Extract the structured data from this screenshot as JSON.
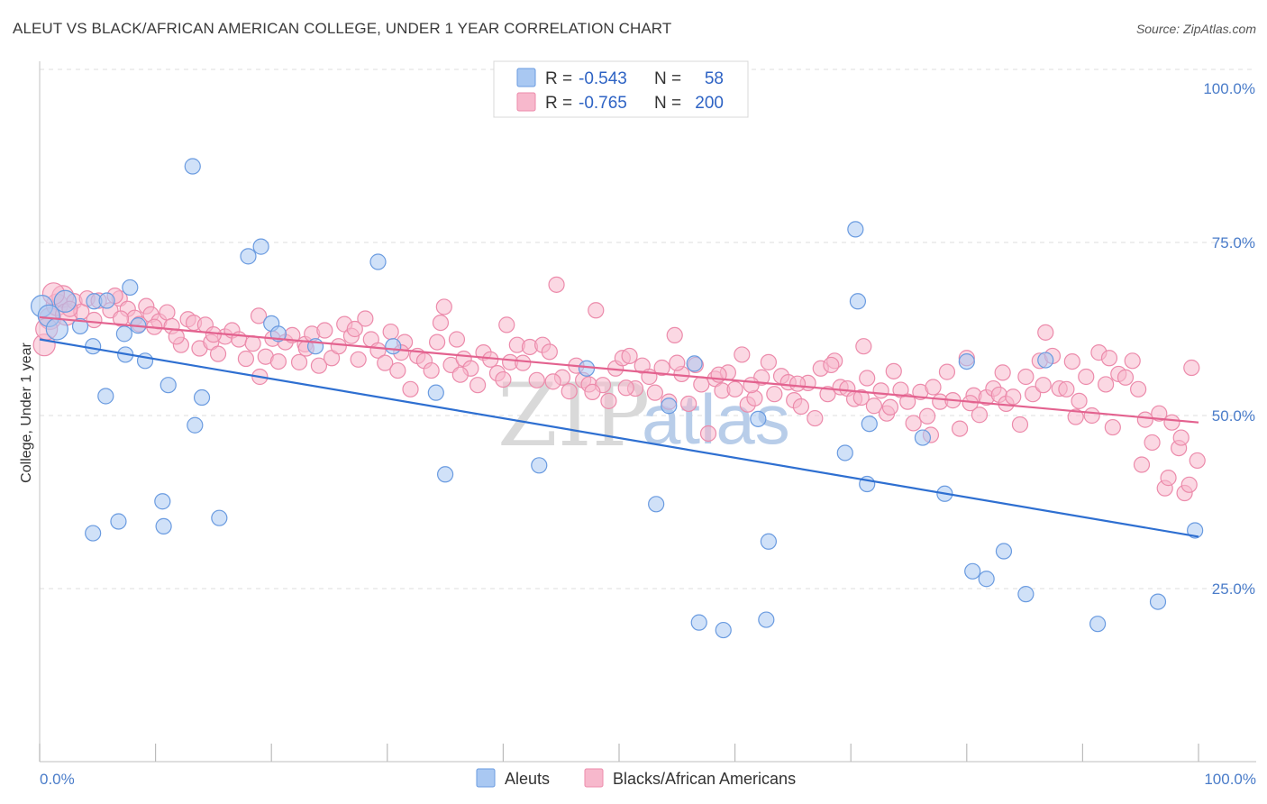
{
  "header": {
    "title": "ALEUT VS BLACK/AFRICAN AMERICAN COLLEGE, UNDER 1 YEAR CORRELATION CHART",
    "source": "Source: ZipAtlas.com"
  },
  "watermark": {
    "zip": "ZIP",
    "atlas": "atlas"
  },
  "colors": {
    "aleut_fill": "#a9c8f2",
    "aleut_stroke": "#6a9be0",
    "aleut_line": "#2e6fd1",
    "black_fill": "#f7b8cc",
    "black_stroke": "#ec8bab",
    "black_line": "#e3628f",
    "tick_text": "#4a7cc9",
    "grid": "#dddddd"
  },
  "legend": {
    "rows": [
      {
        "r_label": "R =",
        "r_value": "-0.543",
        "n_label": "N =",
        "n_value": "58"
      },
      {
        "r_label": "R =",
        "r_value": "-0.765",
        "n_label": "N =",
        "n_value": "200"
      }
    ]
  },
  "chart_data": {
    "type": "scatter",
    "xlabel": "",
    "ylabel": "College, Under 1 year",
    "xlim": [
      0,
      100
    ],
    "ylim": [
      0,
      100
    ],
    "x_tick_labels": [
      "0.0%",
      "100.0%"
    ],
    "y_ticks": [
      {
        "value": 100,
        "label": "100.0%"
      },
      {
        "value": 75,
        "label": "75.0%"
      },
      {
        "value": 50,
        "label": "50.0%"
      },
      {
        "value": 25,
        "label": "25.0%"
      }
    ],
    "grid": true,
    "legend_position": "top-center",
    "series": [
      {
        "name": "Aleuts",
        "trend": {
          "x": [
            0,
            100
          ],
          "y": [
            61.0,
            32.5
          ]
        },
        "points": [
          [
            0.2,
            65.8
          ],
          [
            0.8,
            64.4
          ],
          [
            1.5,
            62.5
          ],
          [
            2.2,
            66.5
          ],
          [
            3.5,
            62.9
          ],
          [
            4.7,
            66.5
          ],
          [
            4.6,
            60.0
          ],
          [
            4.6,
            33.0
          ],
          [
            5.8,
            66.6
          ],
          [
            5.7,
            52.8
          ],
          [
            7.3,
            61.8
          ],
          [
            6.8,
            34.7
          ],
          [
            7.4,
            58.8
          ],
          [
            7.8,
            68.5
          ],
          [
            8.5,
            63.0
          ],
          [
            9.1,
            57.9
          ],
          [
            10.6,
            37.6
          ],
          [
            10.7,
            34.0
          ],
          [
            11.1,
            54.4
          ],
          [
            13.2,
            86.0
          ],
          [
            13.4,
            48.6
          ],
          [
            14.0,
            52.6
          ],
          [
            15.5,
            35.2
          ],
          [
            18.0,
            73.0
          ],
          [
            19.1,
            74.4
          ],
          [
            20.0,
            63.3
          ],
          [
            20.6,
            61.8
          ],
          [
            23.8,
            60.0
          ],
          [
            29.2,
            72.2
          ],
          [
            30.5,
            60.0
          ],
          [
            34.2,
            53.3
          ],
          [
            35.0,
            41.5
          ],
          [
            43.1,
            42.8
          ],
          [
            47.2,
            56.8
          ],
          [
            53.2,
            37.2
          ],
          [
            54.3,
            51.4
          ],
          [
            56.9,
            20.1
          ],
          [
            56.5,
            57.5
          ],
          [
            59.0,
            19.0
          ],
          [
            62.0,
            49.5
          ],
          [
            62.9,
            31.8
          ],
          [
            62.7,
            20.5
          ],
          [
            69.5,
            44.6
          ],
          [
            70.4,
            76.9
          ],
          [
            70.6,
            66.5
          ],
          [
            71.4,
            40.1
          ],
          [
            71.6,
            48.8
          ],
          [
            76.2,
            46.8
          ],
          [
            78.1,
            38.7
          ],
          [
            80.0,
            57.8
          ],
          [
            80.5,
            27.5
          ],
          [
            81.7,
            26.4
          ],
          [
            83.2,
            30.4
          ],
          [
            85.1,
            24.2
          ],
          [
            86.8,
            58.0
          ],
          [
            91.3,
            19.9
          ],
          [
            96.5,
            23.1
          ],
          [
            99.7,
            33.4
          ]
        ]
      },
      {
        "name": "Blacks/African Americans",
        "trend": {
          "x": [
            0,
            100
          ],
          "y": [
            64.2,
            49.0
          ]
        },
        "points": [
          [
            0.4,
            60.2
          ],
          [
            0.9,
            64.0
          ],
          [
            1.5,
            66.0
          ],
          [
            2.0,
            67.2
          ],
          [
            2.3,
            64.6
          ],
          [
            3.0,
            66.5
          ],
          [
            3.6,
            65.0
          ],
          [
            4.1,
            66.9
          ],
          [
            4.7,
            63.8
          ],
          [
            5.1,
            66.6
          ],
          [
            6.1,
            65.2
          ],
          [
            6.9,
            66.9
          ],
          [
            7.6,
            65.4
          ],
          [
            8.2,
            64.1
          ],
          [
            8.6,
            63.2
          ],
          [
            9.2,
            65.8
          ],
          [
            9.6,
            64.6
          ],
          [
            10.3,
            63.6
          ],
          [
            11.0,
            64.9
          ],
          [
            11.4,
            62.9
          ],
          [
            12.2,
            60.2
          ],
          [
            12.8,
            63.9
          ],
          [
            13.3,
            63.4
          ],
          [
            13.8,
            59.7
          ],
          [
            14.3,
            63.1
          ],
          [
            14.8,
            60.6
          ],
          [
            15.4,
            58.9
          ],
          [
            16.0,
            61.4
          ],
          [
            16.6,
            62.3
          ],
          [
            17.2,
            61.0
          ],
          [
            17.8,
            58.2
          ],
          [
            18.4,
            60.4
          ],
          [
            18.9,
            64.4
          ],
          [
            19.5,
            58.5
          ],
          [
            20.1,
            61.1
          ],
          [
            20.6,
            57.8
          ],
          [
            21.2,
            60.6
          ],
          [
            21.8,
            61.6
          ],
          [
            22.4,
            57.7
          ],
          [
            22.9,
            60.3
          ],
          [
            23.5,
            61.8
          ],
          [
            24.1,
            57.2
          ],
          [
            24.6,
            62.3
          ],
          [
            25.2,
            58.3
          ],
          [
            25.8,
            60.0
          ],
          [
            26.3,
            63.2
          ],
          [
            26.9,
            61.5
          ],
          [
            27.5,
            58.1
          ],
          [
            28.1,
            64.0
          ],
          [
            28.6,
            61.0
          ],
          [
            29.2,
            59.4
          ],
          [
            29.8,
            57.6
          ],
          [
            30.3,
            62.1
          ],
          [
            30.9,
            56.5
          ],
          [
            31.5,
            60.6
          ],
          [
            32.0,
            53.8
          ],
          [
            32.6,
            58.6
          ],
          [
            33.2,
            57.9
          ],
          [
            33.8,
            56.5
          ],
          [
            34.3,
            60.6
          ],
          [
            34.9,
            65.7
          ],
          [
            35.5,
            57.3
          ],
          [
            36.0,
            61.0
          ],
          [
            36.6,
            58.2
          ],
          [
            37.2,
            56.8
          ],
          [
            37.8,
            54.4
          ],
          [
            38.3,
            59.1
          ],
          [
            38.9,
            58.1
          ],
          [
            39.5,
            56.1
          ],
          [
            40.0,
            55.2
          ],
          [
            40.6,
            57.7
          ],
          [
            41.2,
            60.2
          ],
          [
            41.7,
            57.6
          ],
          [
            42.3,
            59.9
          ],
          [
            42.9,
            55.1
          ],
          [
            43.4,
            60.2
          ],
          [
            44.0,
            59.2
          ],
          [
            44.6,
            68.9
          ],
          [
            45.1,
            55.5
          ],
          [
            45.7,
            53.5
          ],
          [
            46.3,
            57.2
          ],
          [
            46.9,
            55.1
          ],
          [
            47.4,
            54.5
          ],
          [
            48.0,
            65.2
          ],
          [
            48.6,
            54.4
          ],
          [
            49.1,
            52.1
          ],
          [
            49.7,
            56.8
          ],
          [
            50.3,
            58.3
          ],
          [
            50.9,
            58.6
          ],
          [
            51.4,
            53.9
          ],
          [
            52.0,
            57.2
          ],
          [
            52.6,
            55.6
          ],
          [
            53.1,
            53.3
          ],
          [
            53.7,
            56.9
          ],
          [
            54.3,
            52.0
          ],
          [
            54.8,
            61.6
          ],
          [
            55.4,
            56.0
          ],
          [
            56.0,
            51.7
          ],
          [
            56.6,
            57.3
          ],
          [
            57.1,
            54.5
          ],
          [
            57.7,
            47.4
          ],
          [
            58.3,
            55.3
          ],
          [
            58.9,
            53.6
          ],
          [
            59.4,
            56.2
          ],
          [
            60.0,
            53.8
          ],
          [
            60.6,
            58.8
          ],
          [
            61.1,
            51.6
          ],
          [
            61.7,
            52.5
          ],
          [
            62.3,
            55.5
          ],
          [
            62.9,
            57.7
          ],
          [
            63.4,
            53.1
          ],
          [
            64.0,
            55.7
          ],
          [
            64.6,
            54.8
          ],
          [
            65.1,
            52.2
          ],
          [
            65.7,
            51.3
          ],
          [
            66.3,
            54.7
          ],
          [
            66.9,
            49.6
          ],
          [
            67.4,
            56.8
          ],
          [
            68.0,
            53.1
          ],
          [
            68.6,
            57.9
          ],
          [
            69.1,
            54.1
          ],
          [
            69.7,
            53.9
          ],
          [
            70.3,
            52.4
          ],
          [
            70.9,
            52.6
          ],
          [
            71.4,
            55.4
          ],
          [
            72.0,
            51.4
          ],
          [
            72.6,
            53.6
          ],
          [
            73.1,
            50.3
          ],
          [
            73.7,
            56.4
          ],
          [
            74.3,
            53.7
          ],
          [
            74.9,
            52.0
          ],
          [
            75.4,
            48.9
          ],
          [
            76.0,
            53.4
          ],
          [
            76.6,
            49.9
          ],
          [
            77.1,
            54.1
          ],
          [
            77.7,
            52.0
          ],
          [
            78.3,
            56.3
          ],
          [
            78.8,
            52.2
          ],
          [
            79.4,
            48.1
          ],
          [
            80.0,
            58.3
          ],
          [
            80.6,
            52.9
          ],
          [
            81.1,
            50.1
          ],
          [
            81.7,
            52.6
          ],
          [
            82.3,
            53.9
          ],
          [
            82.8,
            53.0
          ],
          [
            83.4,
            51.7
          ],
          [
            84.0,
            52.7
          ],
          [
            84.6,
            48.7
          ],
          [
            85.1,
            55.6
          ],
          [
            85.7,
            53.1
          ],
          [
            86.3,
            57.9
          ],
          [
            86.8,
            62.0
          ],
          [
            87.4,
            58.6
          ],
          [
            88.0,
            53.9
          ],
          [
            88.6,
            53.8
          ],
          [
            89.1,
            57.8
          ],
          [
            89.7,
            52.1
          ],
          [
            90.3,
            55.6
          ],
          [
            90.8,
            50.0
          ],
          [
            91.4,
            59.1
          ],
          [
            92.0,
            54.5
          ],
          [
            92.6,
            48.3
          ],
          [
            93.1,
            56.0
          ],
          [
            93.7,
            55.5
          ],
          [
            94.3,
            57.9
          ],
          [
            94.8,
            53.8
          ],
          [
            95.4,
            49.4
          ],
          [
            96.0,
            46.1
          ],
          [
            96.6,
            50.3
          ],
          [
            97.1,
            39.5
          ],
          [
            97.7,
            49.0
          ],
          [
            98.3,
            45.3
          ],
          [
            98.8,
            38.8
          ],
          [
            99.4,
            56.9
          ],
          [
            99.9,
            43.5
          ],
          [
            0.6,
            62.5
          ],
          [
            1.2,
            67.6
          ],
          [
            2.6,
            65.4
          ],
          [
            6.5,
            67.3
          ],
          [
            7.0,
            64.0
          ],
          [
            9.9,
            62.8
          ],
          [
            11.8,
            61.4
          ],
          [
            15.0,
            61.7
          ],
          [
            19.0,
            55.6
          ],
          [
            23.0,
            59.7
          ],
          [
            27.2,
            62.5
          ],
          [
            31.2,
            59.1
          ],
          [
            34.6,
            63.4
          ],
          [
            36.3,
            55.9
          ],
          [
            40.3,
            63.1
          ],
          [
            44.3,
            54.9
          ],
          [
            47.7,
            53.4
          ],
          [
            50.6,
            54.0
          ],
          [
            55.0,
            57.6
          ],
          [
            58.6,
            55.9
          ],
          [
            61.4,
            54.4
          ],
          [
            65.4,
            54.6
          ],
          [
            68.3,
            57.3
          ],
          [
            71.1,
            60.0
          ],
          [
            73.4,
            51.2
          ],
          [
            76.9,
            47.2
          ],
          [
            80.3,
            51.8
          ],
          [
            83.1,
            56.2
          ],
          [
            86.6,
            54.4
          ],
          [
            89.4,
            49.8
          ],
          [
            92.3,
            58.3
          ],
          [
            95.1,
            42.9
          ],
          [
            97.4,
            41.0
          ],
          [
            98.5,
            46.8
          ],
          [
            99.2,
            40.0
          ]
        ]
      }
    ]
  },
  "bottom_legend": {
    "items": [
      {
        "label": "Aleuts"
      },
      {
        "label": "Blacks/African Americans"
      }
    ]
  }
}
